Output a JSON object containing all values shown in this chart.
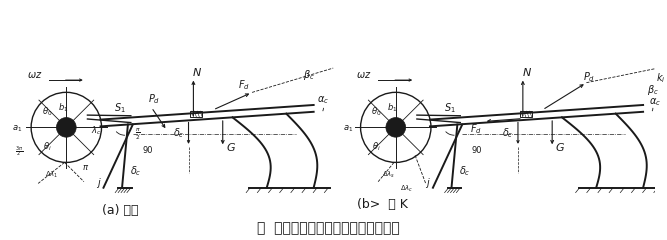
{
  "title": "图  转化振动装置及物件受力分析简图",
  "label_a": "(a) 着落",
  "label_b": "(b>  起 K",
  "bg_color": "#ffffff",
  "fig_width": 6.67,
  "fig_height": 2.4,
  "dpi": 100,
  "title_fontsize": 10,
  "label_fontsize": 9
}
